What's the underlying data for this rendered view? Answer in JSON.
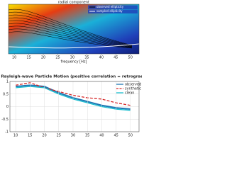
{
  "chart_data": [
    {
      "type": "heatmap",
      "title": "radial component",
      "x_label": "frequency [Hz]",
      "xlim": [
        8,
        53
      ],
      "xticks": [
        10,
        15,
        20,
        25,
        30,
        35,
        40,
        45,
        50
      ],
      "legend_entries": [
        {
          "name": "observed ellipticity",
          "color": "#000000"
        },
        {
          "name": "sampled ellipticity",
          "color": "#ffffff"
        }
      ]
    },
    {
      "type": "line",
      "title": "Rayleigh-wave Particle Motion (positive correlation = retrograde)",
      "x": [
        10,
        15,
        20,
        25,
        30,
        35,
        40,
        45,
        50
      ],
      "series": [
        {
          "name": "observed",
          "color": "#1f77b4",
          "values": [
            0.8,
            0.85,
            0.8,
            0.55,
            0.35,
            0.2,
            0.05,
            -0.05,
            -0.1
          ]
        },
        {
          "name": "synthetic",
          "color": "#d62728",
          "values": [
            0.85,
            0.95,
            0.75,
            0.6,
            0.45,
            0.35,
            0.3,
            0.15,
            0.05
          ]
        },
        {
          "name": "clean",
          "color": "#17becf",
          "values": [
            0.75,
            0.8,
            0.75,
            0.5,
            0.3,
            0.15,
            0.0,
            -0.1,
            -0.15
          ]
        }
      ],
      "xlim": [
        8,
        53
      ],
      "xticks": [
        10,
        15,
        20,
        25,
        30,
        35,
        40,
        45,
        50
      ],
      "ylim": [
        -1,
        1
      ],
      "yticks": [
        -1,
        -0.5,
        0,
        0.5,
        1
      ],
      "grid": true,
      "legend": "upper right"
    }
  ]
}
